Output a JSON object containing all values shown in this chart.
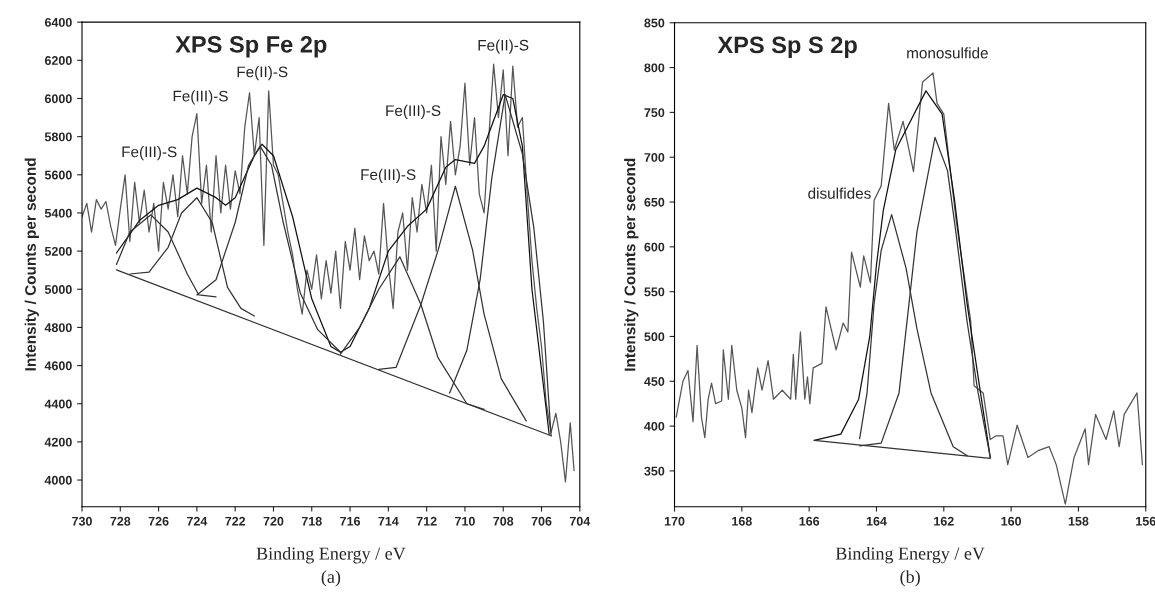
{
  "chart_data": [
    {
      "type": "line",
      "title": "XPS Sp Fe 2p",
      "xlabel": "Binding Energy / eV",
      "ylabel": "Intensity / Counts per second",
      "xlim": [
        730,
        704
      ],
      "ylim": [
        3860,
        6400
      ],
      "xticks": [
        730,
        728,
        726,
        724,
        722,
        720,
        718,
        716,
        714,
        712,
        710,
        708,
        706,
        704
      ],
      "yticks": [
        4000,
        4200,
        4400,
        4600,
        4800,
        5000,
        5200,
        5400,
        5600,
        5800,
        6000,
        6200,
        6400
      ],
      "annotations": [
        "Fe(III)-S",
        "Fe(III)-S",
        "Fe(II)-S",
        "Fe(III)-S",
        "Fe(III)-S",
        "Fe(II)-S",
        "(a)"
      ],
      "series": [
        {
          "color": "#555555",
          "x": [
            730.0,
            729.75,
            729.5,
            729.25,
            729.0,
            728.75,
            728.5,
            728.25,
            728.0,
            727.75,
            727.5,
            727.25,
            727.0,
            726.75,
            726.5,
            726.25,
            726.0,
            725.75,
            725.5,
            725.25,
            725.0,
            724.75,
            724.5,
            724.25,
            724.0,
            723.75,
            723.5,
            723.25,
            723.0,
            722.75,
            722.5,
            722.25,
            722.0,
            721.75,
            721.5,
            721.25,
            721.0,
            720.75,
            720.5,
            720.25,
            720.0,
            719.75,
            719.5,
            719.25,
            719.0,
            718.75,
            718.5,
            718.25,
            718.0,
            717.75,
            717.5,
            717.25,
            717.0,
            716.75,
            716.5,
            716.25,
            716.0,
            715.75,
            715.5,
            715.25,
            715.0,
            714.75,
            714.5,
            714.25,
            714.0,
            713.75,
            713.5,
            713.25,
            713.0,
            712.75,
            712.5,
            712.25,
            712.0,
            711.75,
            711.5,
            711.25,
            711.0,
            710.75,
            710.5,
            710.25,
            710.0,
            709.75,
            709.5,
            709.25,
            709.0,
            708.75,
            708.5,
            708.25,
            708.0,
            707.75,
            707.5,
            707.25,
            707.0,
            706.75,
            706.5,
            706.25,
            706.0,
            705.75,
            705.5,
            705.25,
            705.0,
            704.75,
            704.5,
            704.3
          ],
          "values": [
            5380,
            5450,
            5300,
            5470,
            5420,
            5460,
            5330,
            5230,
            5420,
            5600,
            5250,
            5560,
            5350,
            5520,
            5300,
            5450,
            5200,
            5560,
            5420,
            5600,
            5380,
            5700,
            5500,
            5800,
            5920,
            5450,
            5650,
            5300,
            5700,
            5400,
            5650,
            5420,
            5620,
            5500,
            5850,
            6030,
            5700,
            5900,
            5230,
            6040,
            5650,
            5600,
            5450,
            5300,
            5180,
            5000,
            4870,
            5100,
            5000,
            5180,
            4950,
            5150,
            4980,
            5200,
            4900,
            5250,
            5100,
            5320,
            5050,
            5280,
            5150,
            5200,
            5080,
            5450,
            5130,
            4900,
            5300,
            5400,
            5100,
            5480,
            5300,
            5550,
            5400,
            5650,
            5200,
            5800,
            5550,
            5880,
            5600,
            5750,
            6080,
            5650,
            5900,
            5500,
            5400,
            5800,
            6180,
            5900,
            6150,
            5700,
            6170,
            5850,
            5900,
            5500,
            5150,
            4900,
            4700,
            4400,
            4250,
            4350,
            4200,
            3990,
            4300,
            4050
          ]
        },
        {
          "color": "#111111",
          "x": [
            728.2,
            727.0,
            726.0,
            725.0,
            724.0,
            723.0,
            722.5,
            722.0,
            721.0,
            720.6,
            720.0,
            719.0,
            718.0,
            717.0,
            716.5,
            716.0,
            715.0,
            714.0,
            713.0,
            712.0,
            711.0,
            710.5,
            709.5,
            709.0,
            708.0,
            707.5,
            707.0,
            706.5,
            705.6
          ],
          "values": [
            5190,
            5360,
            5440,
            5470,
            5530,
            5480,
            5440,
            5480,
            5700,
            5760,
            5700,
            5380,
            4950,
            4700,
            4670,
            4700,
            4900,
            5200,
            5330,
            5420,
            5640,
            5680,
            5660,
            5750,
            6020,
            6000,
            5750,
            5000,
            4240
          ]
        },
        {
          "color": "#333333",
          "x": [
            728.2,
            727.5,
            726.4,
            725.5,
            724.5,
            723.9,
            723.0
          ],
          "values": [
            5130,
            5300,
            5390,
            5300,
            5080,
            4970,
            4960
          ]
        },
        {
          "color": "#333333",
          "x": [
            727.5,
            726.5,
            725.5,
            724.8,
            724.0,
            723.2,
            722.4,
            721.7,
            721.0
          ],
          "values": [
            5080,
            5090,
            5220,
            5400,
            5480,
            5350,
            5010,
            4900,
            4860
          ]
        },
        {
          "color": "#333333",
          "x": [
            724.0,
            723.0,
            722.0,
            721.3,
            720.7,
            720.1,
            719.5,
            718.6,
            717.7,
            716.5
          ],
          "values": [
            4970,
            5050,
            5350,
            5650,
            5750,
            5650,
            5355,
            4980,
            4790,
            4670
          ]
        },
        {
          "color": "#333333",
          "x": [
            716.5,
            715.5,
            714.5,
            713.4,
            712.3,
            711.4,
            709.9,
            709.0
          ],
          "values": [
            4660,
            4800,
            5000,
            5170,
            4920,
            4640,
            4400,
            4370
          ]
        },
        {
          "color": "#333333",
          "x": [
            714.5,
            713.6,
            712.3,
            711.4,
            710.5,
            709.6,
            709.0,
            708.1,
            706.8
          ],
          "values": [
            4580,
            4590,
            4920,
            5205,
            5540,
            5205,
            4870,
            4530,
            4310
          ]
        },
        {
          "color": "#333333",
          "x": [
            710.8,
            709.9,
            709.2,
            708.6,
            707.9,
            707.0,
            706.4,
            705.9,
            705.5
          ],
          "values": [
            4456,
            4680,
            5055,
            5580,
            6020,
            5710,
            5320,
            4830,
            4232
          ]
        },
        {
          "color": "#333333",
          "x": [
            728.2,
            705.5
          ],
          "values": [
            5102,
            4232
          ]
        }
      ]
    },
    {
      "type": "line",
      "title": "XPS Sp S 2p",
      "xlabel": "Binding Energy / eV",
      "ylabel": "Intensity / Counts per second",
      "xlim": [
        170,
        156
      ],
      "ylim": [
        310,
        850
      ],
      "xticks": [
        170,
        168,
        166,
        164,
        162,
        160,
        158,
        156
      ],
      "yticks": [
        350,
        400,
        450,
        500,
        550,
        600,
        650,
        700,
        750,
        800,
        850
      ],
      "annotations": [
        "monosulfide",
        "disulfides",
        "(b)"
      ],
      "series": [
        {
          "color": "#555555",
          "x": [
            169.95,
            169.75,
            169.6,
            169.45,
            169.33,
            169.2,
            169.1,
            169.0,
            168.9,
            168.78,
            168.6,
            168.55,
            168.4,
            168.3,
            168.15,
            168.0,
            167.89,
            167.8,
            167.7,
            167.53,
            167.4,
            167.22,
            167.06,
            166.8,
            166.55,
            166.47,
            166.4,
            166.26,
            166.13,
            166.05,
            165.98,
            165.88,
            165.62,
            165.5,
            165.2,
            164.99,
            164.85,
            164.74,
            164.48,
            164.38,
            164.18,
            164.07,
            163.86,
            163.64,
            163.47,
            163.21,
            162.9,
            162.63,
            162.32,
            162.2,
            162.0,
            161.84,
            161.63,
            161.2,
            161.1,
            160.83,
            160.62,
            160.46,
            160.24,
            160.1,
            159.82,
            159.5,
            159.18,
            158.87,
            158.66,
            158.39,
            158.13,
            157.8,
            157.7,
            157.49,
            157.18,
            156.95,
            156.79,
            156.64,
            156.26,
            156.1
          ],
          "values": [
            410,
            450,
            462,
            405,
            490,
            410,
            387,
            430,
            448,
            425,
            428,
            485,
            430,
            490,
            440,
            420,
            387,
            440,
            415,
            465,
            440,
            473,
            430,
            440,
            430,
            480,
            430,
            505,
            430,
            455,
            425,
            465,
            470,
            533,
            485,
            515,
            505,
            594,
            555,
            590,
            560,
            652,
            668,
            760,
            708,
            740,
            684,
            784,
            794,
            760,
            748,
            696,
            629,
            517,
            445,
            437,
            385,
            389,
            389,
            357,
            401,
            365,
            373,
            377,
            357,
            313,
            365,
            397,
            357,
            413,
            385,
            417,
            377,
            413,
            437,
            357
          ]
        },
        {
          "color": "#111111",
          "x": [
            165.85,
            165.06,
            164.53,
            164.2,
            164.0,
            163.8,
            163.43,
            162.53,
            162.05,
            161.68,
            161.31,
            160.62
          ],
          "values": [
            384,
            391,
            430,
            500,
            580,
            640,
            708,
            774,
            748,
            652,
            537,
            365
          ]
        },
        {
          "color": "#333333",
          "x": [
            164.5,
            164.28,
            164.07,
            163.86,
            163.55,
            163.12,
            162.8,
            162.38,
            161.72,
            161.3
          ],
          "values": [
            386,
            437,
            537,
            596,
            636,
            576,
            509,
            437,
            377,
            367
          ]
        },
        {
          "color": "#333333",
          "x": [
            164.5,
            163.86,
            163.33,
            163.0,
            162.8,
            162.26,
            161.89,
            161.64,
            161.31,
            160.98,
            160.62
          ],
          "values": [
            378,
            381,
            437,
            548,
            616,
            722,
            685,
            616,
            517,
            437,
            365
          ]
        },
        {
          "color": "#333333",
          "x": [
            165.85,
            160.62
          ],
          "values": [
            384,
            364
          ]
        }
      ]
    }
  ]
}
